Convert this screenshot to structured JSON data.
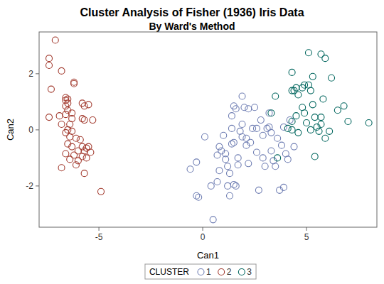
{
  "chart_data": {
    "type": "scatter",
    "title": "Cluster Analysis of Fisher (1936) Iris Data",
    "subtitle": "By Ward's Method",
    "x_label": "Can1",
    "y_label": "Can2",
    "legend_title": "CLUSTER",
    "legend": "bottom",
    "xlim": [
      -7.88,
      8.39
    ],
    "ylim": [
      -3.47,
      3.49
    ],
    "xticks": [
      -5,
      0,
      5
    ],
    "yticks": [
      -2,
      0,
      2
    ],
    "marker": "circle",
    "series": [
      {
        "name": "1",
        "color": "#6f7eb3",
        "x": [
          -0.6,
          0.1,
          -0.3,
          -0.3,
          -0.2,
          0.4,
          0.7,
          0.5,
          0.8,
          0.7,
          0.8,
          0.9,
          1.0,
          1.1,
          1.1,
          1.2,
          1.3,
          1.2,
          1.3,
          1.5,
          1.6,
          1.4,
          1.4,
          1.4,
          1.5,
          1.6,
          1.5,
          1.7,
          1.7,
          1.8,
          1.9,
          1.9,
          1.9,
          2.0,
          2.1,
          2.1,
          2.2,
          2.2,
          2.3,
          2.4,
          2.5,
          2.6,
          2.6,
          2.7,
          2.8,
          2.9,
          2.9,
          3.0,
          3.1,
          3.2,
          3.3,
          3.3,
          3.4,
          3.5,
          3.6,
          3.7,
          3.8,
          3.9,
          4.0,
          4.1,
          4.2,
          4.4,
          3.9,
          3.2
        ],
        "values": [
          -1.4,
          -0.25,
          -1.15,
          -2.35,
          -2.4,
          -2.0,
          -1.85,
          -3.2,
          -1.45,
          -0.9,
          -0.6,
          -0.75,
          -0.2,
          -0.85,
          -1.05,
          -1.3,
          -1.55,
          -2.0,
          -2.35,
          -1.95,
          -2.0,
          -0.5,
          0.05,
          0.5,
          0.85,
          0.75,
          -0.45,
          -1.0,
          -1.25,
          -0.05,
          0.2,
          1.2,
          -0.25,
          0.8,
          -0.3,
          -0.55,
          -1.2,
          0.75,
          -0.45,
          0.05,
          0.8,
          0.05,
          -0.8,
          -2.15,
          0.35,
          -0.2,
          -1.0,
          -1.3,
          0.05,
          0.1,
          -0.1,
          -0.75,
          -1.1,
          -1.3,
          -0.3,
          -2.15,
          -0.55,
          -2.05,
          -0.85,
          -1.05,
          0.35,
          -0.6,
          0.1,
          0.6
        ]
      },
      {
        "name": "2",
        "color": "#a23a2e",
        "x": [
          -7.1,
          -7.4,
          -7.4,
          -6.8,
          -7.3,
          -6.2,
          -6.2,
          -6.6,
          -6.6,
          -6.5,
          -6.5,
          -6.6,
          -5.8,
          -5.7,
          -5.5,
          -6.5,
          -6.3,
          -6.6,
          -6.9,
          -7.4,
          -6.3,
          -5.8,
          -5.7,
          -5.3,
          -6.4,
          -6.8,
          -6.5,
          -6.3,
          -6.6,
          -6.4,
          -6.1,
          -5.9,
          -6.5,
          -6.3,
          -5.8,
          -5.6,
          -5.5,
          -5.7,
          -5.4,
          -6.0,
          -6.6,
          -6.2,
          -5.8,
          -6.4,
          -6.0,
          -5.6,
          -6.1,
          -6.8,
          -5.7,
          -4.9
        ],
        "values": [
          3.2,
          2.55,
          2.3,
          2.1,
          1.45,
          1.7,
          1.65,
          1.15,
          1.05,
          1.1,
          0.95,
          0.85,
          0.95,
          0.85,
          0.9,
          0.7,
          0.6,
          0.55,
          0.5,
          0.45,
          0.4,
          0.4,
          0.35,
          0.35,
          0.2,
          0.2,
          0.0,
          -0.05,
          -0.1,
          -0.25,
          -0.3,
          -0.35,
          -0.5,
          -0.6,
          -0.6,
          -0.65,
          -0.6,
          -0.75,
          -0.8,
          -0.75,
          -0.85,
          -0.9,
          -0.95,
          -1.05,
          -1.1,
          -1.0,
          -1.25,
          -1.35,
          -1.55,
          -2.2
        ]
      },
      {
        "name": "3",
        "color": "#01665e",
        "x": [
          3.6,
          3.3,
          3.5,
          4.1,
          4.3,
          4.4,
          4.3,
          4.5,
          4.6,
          4.8,
          4.9,
          4.8,
          4.9,
          5.0,
          4.3,
          4.3,
          4.6,
          5.1,
          5.1,
          5.2,
          5.3,
          5.3,
          5.4,
          5.4,
          5.5,
          5.7,
          5.7,
          5.8,
          5.9,
          5.7,
          5.9,
          6.2,
          6.5,
          6.8,
          7.0,
          8.0,
          5.2,
          4.5,
          5.6,
          6.1
        ],
        "values": [
          -1.0,
          0.6,
          1.2,
          0.05,
          2.05,
          1.4,
          1.4,
          1.5,
          1.25,
          1.5,
          1.6,
          0.8,
          0.6,
          0.25,
          0.3,
          0.0,
          -0.1,
          1.6,
          2.75,
          1.4,
          0.9,
          1.9,
          -0.95,
          0.45,
          0.1,
          0.2,
          0.45,
          1.1,
          -0.3,
          2.7,
          2.55,
          1.85,
          0.7,
          0.85,
          0.3,
          0.25,
          0.0,
          0.5,
          -0.05,
          -0.05
        ]
      }
    ]
  }
}
